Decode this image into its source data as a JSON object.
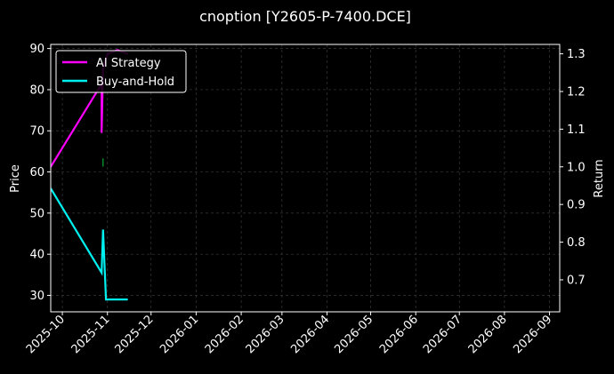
{
  "chart_data": {
    "type": "line",
    "title": "cnoption [Y2605-P-7400.DCE]",
    "ylabel": "Price",
    "y2label": "Return",
    "ylim": [
      26,
      91
    ],
    "y2lim": [
      0.615,
      1.325
    ],
    "xlim": [
      "2025-09-23",
      "2026-09-08"
    ],
    "yticks": [
      30,
      40,
      50,
      60,
      70,
      80,
      90
    ],
    "y2ticks": [
      0.7,
      0.8,
      0.9,
      1.0,
      1.1,
      1.2,
      1.3
    ],
    "y2tick_labels": [
      "0.7",
      "0.8",
      "0.9",
      "1.0",
      "1.1",
      "1.2",
      "1.3"
    ],
    "xticks": [
      "2025-10-01",
      "2025-11-01",
      "2025-12-01",
      "2026-01-01",
      "2026-02-01",
      "2026-03-01",
      "2026-04-01",
      "2026-05-01",
      "2026-06-01",
      "2026-07-01",
      "2026-08-01",
      "2026-09-01"
    ],
    "xtick_labels": [
      "2025-10",
      "2025-11",
      "2025-12",
      "2026-01",
      "2026-02",
      "2026-03",
      "2026-04",
      "2026-05",
      "2026-06",
      "2026-07",
      "2026-08",
      "2026-09"
    ],
    "grid": true,
    "legend_position": "top-left",
    "series": [
      {
        "name": "AI Strategy",
        "axis": "right",
        "color": "#ff00ff",
        "points": [
          {
            "x": "2025-09-23",
            "y": 1.0
          },
          {
            "x": "2025-10-28",
            "y": 1.22
          },
          {
            "x": "2025-10-28",
            "y": 1.09
          },
          {
            "x": "2025-10-29",
            "y": 1.26
          },
          {
            "x": "2025-11-01",
            "y": 1.3
          },
          {
            "x": "2025-11-08",
            "y": 1.31
          },
          {
            "x": "2025-11-15",
            "y": 1.3
          }
        ]
      },
      {
        "name": "Buy-and-Hold",
        "axis": "left",
        "color": "#00f0f0",
        "points": [
          {
            "x": "2025-09-23",
            "y": 56
          },
          {
            "x": "2025-10-28",
            "y": 35.5
          },
          {
            "x": "2025-10-29",
            "y": 46
          },
          {
            "x": "2025-10-31",
            "y": 29
          },
          {
            "x": "2025-11-07",
            "y": 29
          },
          {
            "x": "2025-11-15",
            "y": 29
          }
        ]
      }
    ],
    "annotations": [
      {
        "type": "vline-marker",
        "x": "2025-10-29",
        "y_from": 61.3,
        "y_to": 63.3,
        "color": "#00cc44"
      }
    ]
  }
}
